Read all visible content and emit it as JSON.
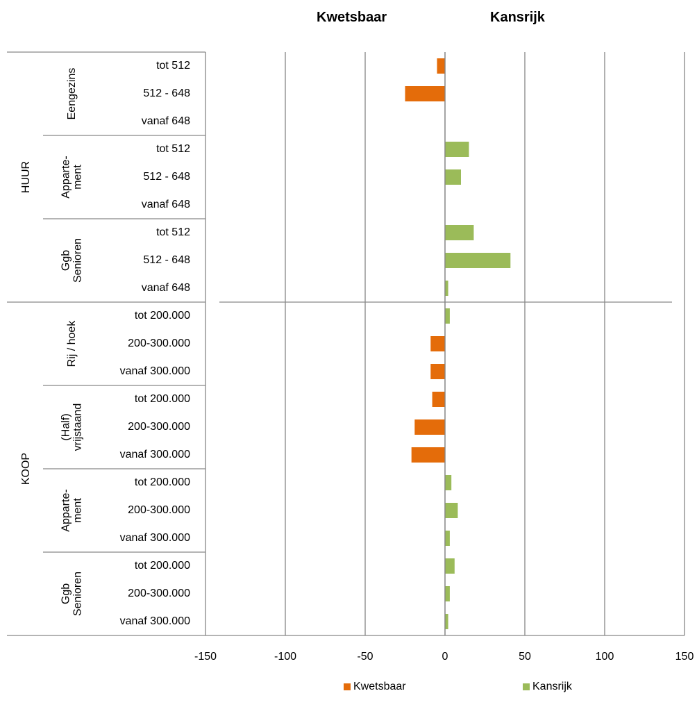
{
  "header": {
    "left_label": "Kwetsbaar",
    "right_label": "Kansrijk"
  },
  "chart_data": {
    "type": "bar",
    "orientation": "horizontal",
    "xlim": [
      -150,
      150
    ],
    "x_ticks": [
      -150,
      -100,
      -50,
      0,
      50,
      100,
      150
    ],
    "grid": true,
    "legend_position": "bottom",
    "groups": [
      {
        "name": "HUUR",
        "subgroups": [
          {
            "name": "Eengezins",
            "categories": [
              "tot 512",
              "512 - 648",
              "vanaf 648"
            ]
          },
          {
            "name": "Apparte-\nment",
            "categories": [
              "tot 512",
              "512 - 648",
              "vanaf 648"
            ]
          },
          {
            "name": "Ggb\nSenioren",
            "categories": [
              "tot 512",
              "512 - 648",
              "vanaf 648"
            ]
          }
        ]
      },
      {
        "name": "KOOP",
        "subgroups": [
          {
            "name": "Rij / hoek",
            "categories": [
              "tot 200.000",
              "200-300.000",
              "vanaf 300.000"
            ]
          },
          {
            "name": "(Half)\nvrijstaand",
            "categories": [
              "tot 200.000",
              "200-300.000",
              "vanaf 300.000"
            ]
          },
          {
            "name": "Apparte-\nment",
            "categories": [
              "tot 200.000",
              "200-300.000",
              "vanaf 300.000"
            ]
          },
          {
            "name": "Ggb\nSenioren",
            "categories": [
              "tot 200.000",
              "200-300.000",
              "vanaf 300.000"
            ]
          }
        ]
      }
    ],
    "series": [
      {
        "name": "Kwetsbaar",
        "color": "#e46c0a",
        "values": [
          -5,
          -25,
          0,
          0,
          0,
          0,
          0,
          0,
          0,
          0,
          -9,
          -9,
          -8,
          -19,
          -21,
          0,
          0,
          0,
          0,
          0,
          0
        ]
      },
      {
        "name": "Kansrijk",
        "color": "#9bbb59",
        "values": [
          0,
          0,
          0,
          15,
          10,
          0,
          18,
          41,
          2,
          3,
          0,
          0,
          0,
          0,
          0,
          4,
          8,
          3,
          6,
          3,
          2
        ]
      }
    ]
  }
}
